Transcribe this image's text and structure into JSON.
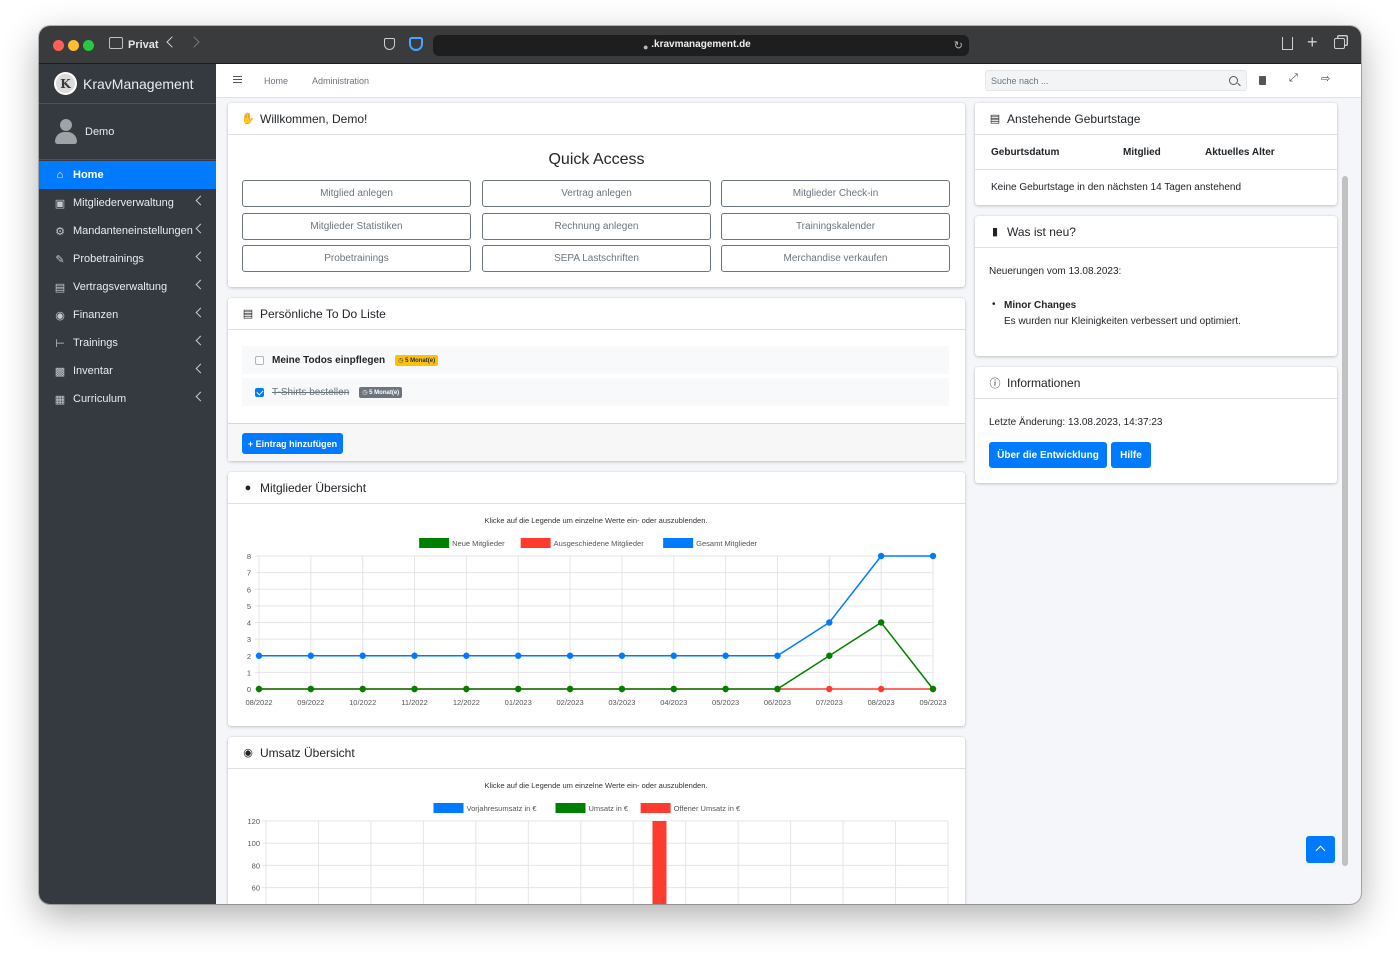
{
  "browser": {
    "privacy_label": "Privat",
    "url": ".kravmanagement.de"
  },
  "sidebar": {
    "brand": "KravManagement",
    "logo_letter": "K",
    "user": "Demo",
    "items": [
      {
        "label": "Home",
        "icon": "home-icon",
        "active": true
      },
      {
        "label": "Mitgliederverwaltung",
        "icon": "id-card-icon"
      },
      {
        "label": "Mandanteneinstellungen",
        "icon": "cogs-icon"
      },
      {
        "label": "Probetrainings",
        "icon": "pen-icon"
      },
      {
        "label": "Vertragsverwaltung",
        "icon": "contract-icon"
      },
      {
        "label": "Finanzen",
        "icon": "hand-coin-icon"
      },
      {
        "label": "Trainings",
        "icon": "dumbbell-icon"
      },
      {
        "label": "Inventar",
        "icon": "pallet-icon"
      },
      {
        "label": "Curriculum",
        "icon": "book-icon"
      }
    ]
  },
  "topnav": {
    "home": "Home",
    "admin": "Administration",
    "search_placeholder": "Suche nach ..."
  },
  "welcome": {
    "title": "Willkommen, Demo!",
    "quick_access": "Quick Access",
    "buttons": [
      "Mitglied anlegen",
      "Vertrag anlegen",
      "Mitglieder Check-in",
      "Mitglieder Statistiken",
      "Rechnung anlegen",
      "Trainingskalender",
      "Probetrainings",
      "SEPA Lastschriften",
      "Merchandise verkaufen"
    ]
  },
  "todo": {
    "title": "Persönliche To Do Liste",
    "items": [
      {
        "text": "Meine Todos einpflegen",
        "badge": "5 Monat(e)",
        "done": false
      },
      {
        "text": "T-Shirts bestellen",
        "badge": "5 Monat(e)",
        "done": true
      }
    ],
    "add_label": "+ Eintrag hinzufügen"
  },
  "members_chart_card": {
    "title": "Mitglieder Übersicht",
    "hint": "Klicke auf die Legende um einzelne Werte ein- oder auszublenden."
  },
  "revenue_chart_card": {
    "title": "Umsatz Übersicht",
    "hint": "Klicke auf die Legende um einzelne Werte ein- oder auszublenden."
  },
  "birthdays": {
    "title": "Anstehende Geburtstage",
    "columns": [
      "Geburtsdatum",
      "Mitglied",
      "Aktuelles Alter"
    ],
    "empty": "Keine Geburtstage in den nächsten 14 Tagen anstehend"
  },
  "news": {
    "title": "Was ist neu?",
    "intro": "Neuerungen vom 13.08.2023:",
    "item_title": "Minor Changes",
    "item_text": "Es wurden nur Kleinigkeiten verbessert und optimiert."
  },
  "info": {
    "title": "Informationen",
    "last_change": "Letzte Änderung: 13.08.2023, 14:37:23",
    "btn_dev": "Über die Entwicklung",
    "btn_help": "Hilfe"
  },
  "colors": {
    "primary": "#007bff",
    "green": "#008000",
    "red": "#ff3b30",
    "sidebar": "#343a40"
  },
  "chart_data": [
    {
      "type": "line",
      "x": [
        "08/2022",
        "09/2022",
        "10/2022",
        "11/2022",
        "12/2022",
        "01/2023",
        "02/2023",
        "03/2023",
        "04/2023",
        "05/2023",
        "06/2023",
        "07/2023",
        "08/2023",
        "09/2023"
      ],
      "series": [
        {
          "name": "Neue Mitglieder",
          "color": "#008000",
          "values": [
            0,
            0,
            0,
            0,
            0,
            0,
            0,
            0,
            0,
            0,
            0,
            2,
            4,
            0
          ]
        },
        {
          "name": "Ausgeschiedene Mitglieder",
          "color": "#ff3b30",
          "values": [
            0,
            0,
            0,
            0,
            0,
            0,
            0,
            0,
            0,
            0,
            0,
            0,
            0,
            0
          ]
        },
        {
          "name": "Gesamt Mitglieder",
          "color": "#007bff",
          "values": [
            2,
            2,
            2,
            2,
            2,
            2,
            2,
            2,
            2,
            2,
            2,
            4,
            8,
            8
          ]
        }
      ],
      "ylim": [
        0,
        8
      ],
      "yticks": [
        0,
        1,
        2,
        3,
        4,
        5,
        6,
        7,
        8
      ],
      "legend": "top",
      "grid": true
    },
    {
      "type": "bar",
      "series": [
        {
          "name": "Vorjahresumsatz in €",
          "color": "#007bff"
        },
        {
          "name": "Umsatz in €",
          "color": "#008000"
        },
        {
          "name": "Offener Umsatz in €",
          "color": "#ff3b30",
          "values": [
            120
          ]
        }
      ],
      "yticks_visible": [
        120,
        100,
        80,
        60
      ],
      "ylim_visible": [
        60,
        120
      ],
      "legend": "top",
      "grid": true
    }
  ]
}
